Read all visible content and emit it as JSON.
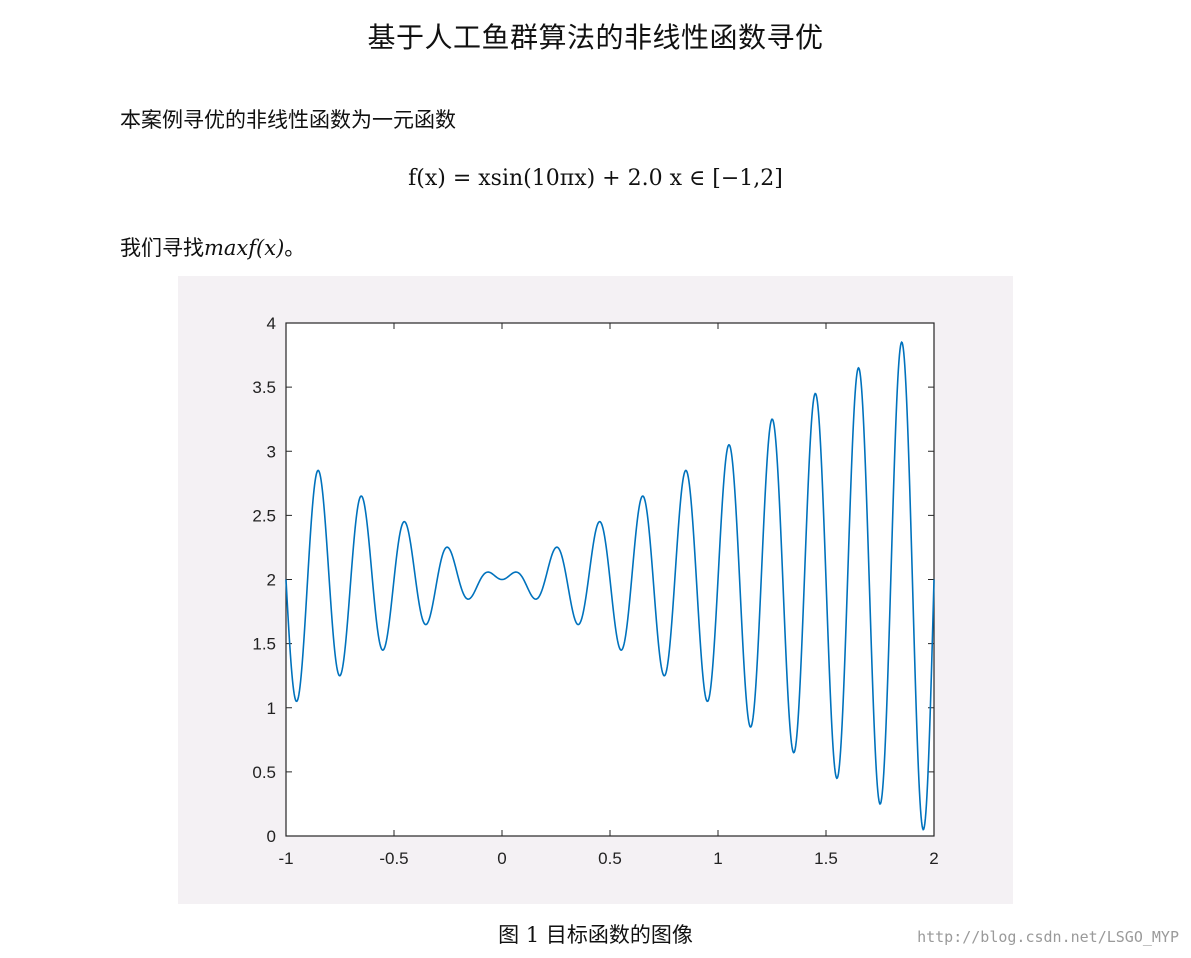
{
  "document": {
    "title": "基于人工鱼群算法的非线性函数寻优",
    "intro": "本案例寻优的非线性函数为一元函数",
    "equation": "f(x) = xsin(10πx) + 2.0 x ∈ [−1,2]",
    "goal_prefix": "我们寻找",
    "goal_math": "maxf(x)",
    "goal_suffix": "。",
    "caption": "图 1  目标函数的图像",
    "watermark": "http://blog.csdn.net/LSGO_MYP"
  },
  "chart_data": {
    "type": "line",
    "title": "",
    "xlabel": "",
    "ylabel": "",
    "xlim": [
      -1,
      2
    ],
    "ylim": [
      0,
      4
    ],
    "x_ticks": [
      -1,
      -0.5,
      0,
      0.5,
      1,
      1.5,
      2
    ],
    "x_tick_labels": [
      "-1",
      "-0.5",
      "0",
      "0.5",
      "1",
      "1.5",
      "2"
    ],
    "y_ticks": [
      0,
      0.5,
      1,
      1.5,
      2,
      2.5,
      3,
      3.5,
      4
    ],
    "y_tick_labels": [
      "0",
      "0.5",
      "1",
      "1.5",
      "2",
      "2.5",
      "3",
      "3.5",
      "4"
    ],
    "grid": false,
    "legend": "none",
    "series": [
      {
        "function": "x*sin(10*pi*x)+2.0",
        "domain": [
          -1,
          2
        ],
        "samples": 1200,
        "color": "#0072bd"
      }
    ]
  }
}
